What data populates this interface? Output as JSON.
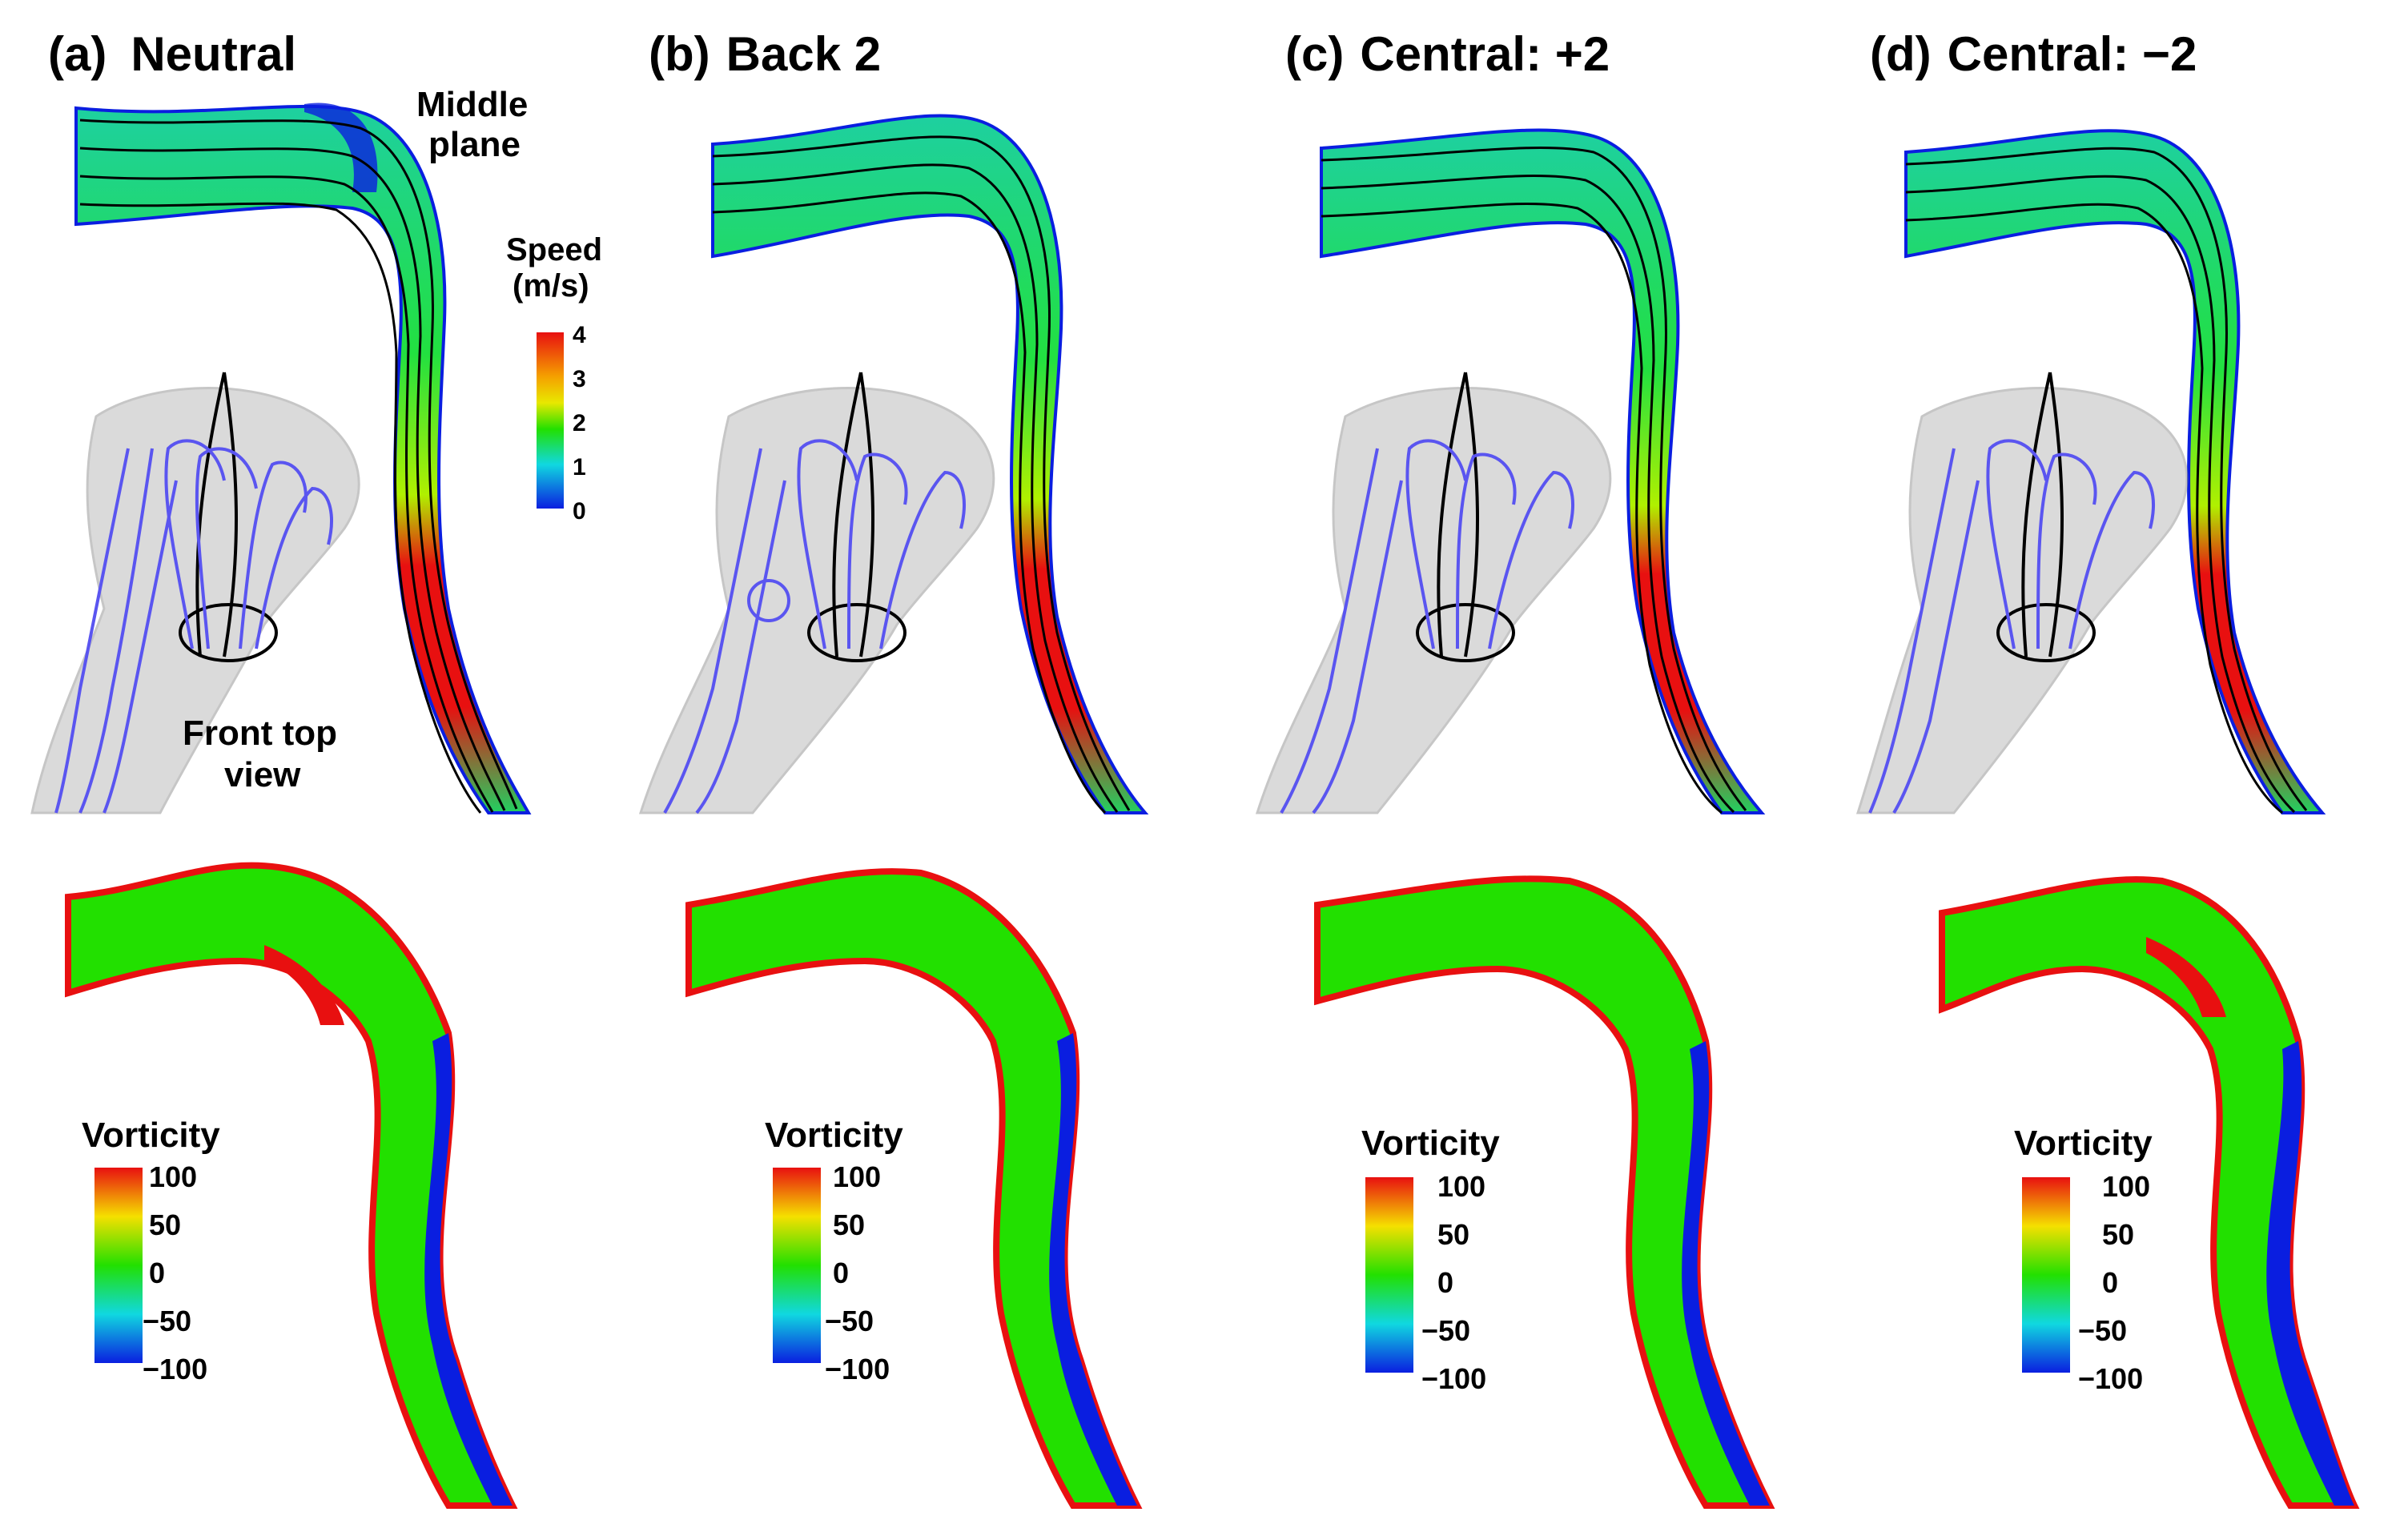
{
  "panels": [
    {
      "label": "(a)",
      "title": "Neutral"
    },
    {
      "label": "(b)",
      "title": "Back 2"
    },
    {
      "label": "(c)",
      "title": "Central: +2"
    },
    {
      "label": "(d)",
      "title": "Central: −2"
    }
  ],
  "annotations": {
    "middle_plane_line1": "Middle",
    "middle_plane_line2": "plane",
    "front_top_line1": "Front top",
    "front_top_line2": "view"
  },
  "speed_legend": {
    "title_line1": "Speed",
    "title_line2": "(m/s)",
    "ticks": [
      "4",
      "3",
      "2",
      "1",
      "0"
    ]
  },
  "vorticity_legend": {
    "title": "Vorticity",
    "ticks": [
      "100",
      "50",
      "0",
      "−50",
      "−100"
    ]
  },
  "colors": {
    "high": "#e81010",
    "mid_high": "#f5e000",
    "mid": "#22e000",
    "mid_low": "#10d8e0",
    "low": "#0a1ee0",
    "streamline_black": "#000000",
    "streamline_blue": "#5a55f0",
    "airway_gray": "#bdbdbd"
  }
}
